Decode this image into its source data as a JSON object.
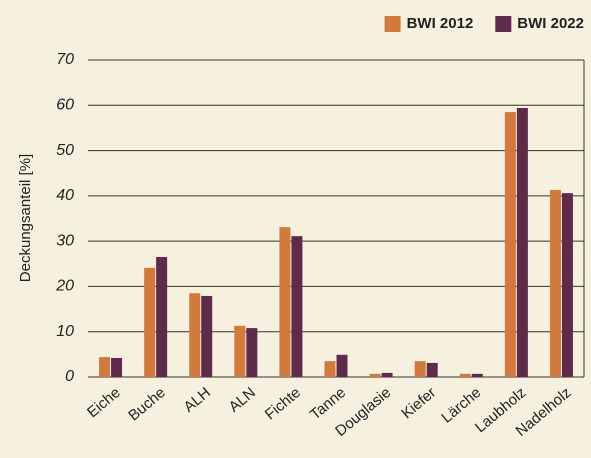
{
  "chart_data": {
    "type": "bar",
    "ylabel": "Deckungsanteil  [%]",
    "categories": [
      "Eiche",
      "Buche",
      "ALH",
      "ALN",
      "Fichte",
      "Tanne",
      "Douglasie",
      "Kiefer",
      "Lärche",
      "Laubholz",
      "Nadelholz"
    ],
    "series": [
      {
        "name": "BWI 2012",
        "color": "#d27a3c",
        "values": [
          4.4,
          24.1,
          18.5,
          11.3,
          33.1,
          3.5,
          0.7,
          3.5,
          0.7,
          58.5,
          41.3
        ]
      },
      {
        "name": "BWI 2022",
        "color": "#5e2b4b",
        "values": [
          4.2,
          26.5,
          17.9,
          10.8,
          31.1,
          4.9,
          0.9,
          3.1,
          0.7,
          59.4,
          40.6
        ]
      }
    ],
    "ylim": [
      0,
      70
    ],
    "yticks": [
      0,
      10,
      20,
      30,
      40,
      50,
      60,
      70
    ],
    "grid": true,
    "legend": "top-right"
  }
}
